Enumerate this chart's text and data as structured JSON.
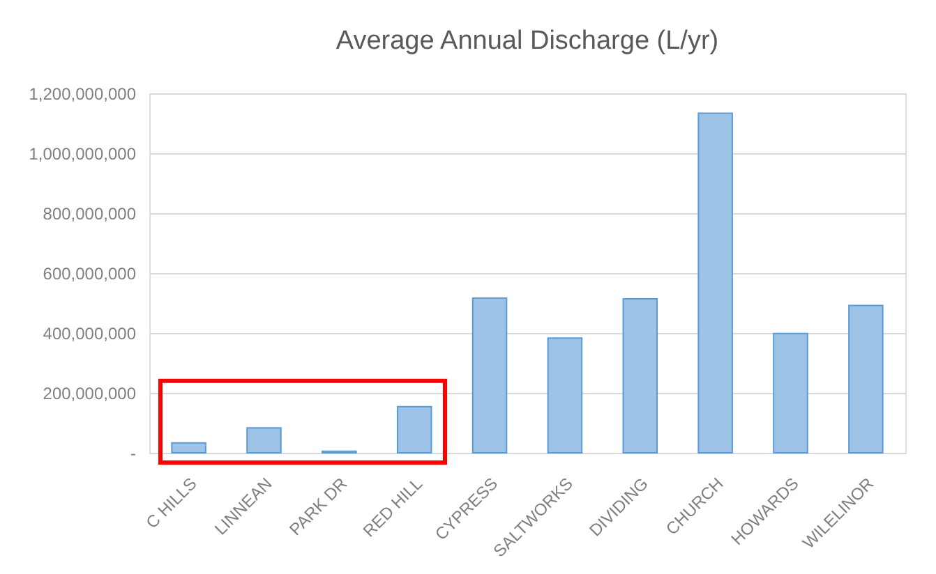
{
  "chart_data": {
    "type": "bar",
    "title": "Average Annual Discharge (L/yr)",
    "categories": [
      "C HILLS",
      "LINNEAN",
      "PARK DR",
      "RED HILL",
      "CYPRESS",
      "SALTWORKS",
      "DIVIDING",
      "CHURCH",
      "HOWARDS",
      "WILELINOR"
    ],
    "values": [
      33000000,
      83000000,
      5000000,
      154000000,
      516000000,
      383000000,
      514000000,
      1134000000,
      398000000,
      492000000
    ],
    "color": "#9dc3e6",
    "ylim": [
      0,
      1200000000
    ],
    "yticks": [
      {
        "value": 0,
        "label": "-"
      },
      {
        "value": 200000000,
        "label": "200,000,000"
      },
      {
        "value": 400000000,
        "label": "400,000,000"
      },
      {
        "value": 600000000,
        "label": "600,000,000"
      },
      {
        "value": 800000000,
        "label": "800,000,000"
      },
      {
        "value": 1000000000,
        "label": "1,000,000,000"
      },
      {
        "value": 1200000000,
        "label": "1,200,000,000"
      }
    ],
    "grid": "y"
  }
}
